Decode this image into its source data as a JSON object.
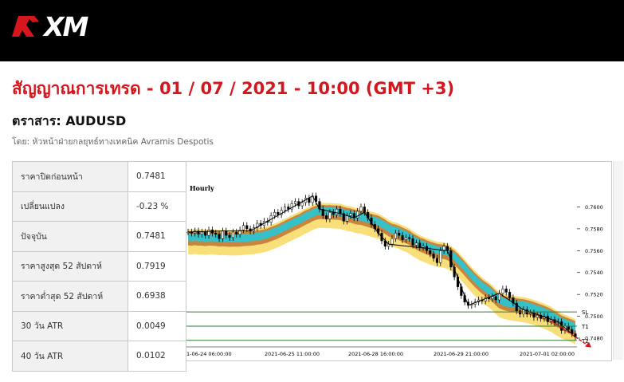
{
  "brand": {
    "name": "XM",
    "accent": "#d5161d"
  },
  "page": {
    "title": "สัญญาณการเทรด - 01 / 07 / 2021 - 10:00 (GMT +3)",
    "instrument": "ตราสาร: AUDUSD",
    "author": "โดย: หัวหน้าฝ่ายกลยุทธ์ทางเทคนิค Avramis Despotis"
  },
  "stats": [
    {
      "label": "ราคาปิดก่อนหน้า",
      "value": "0.7481"
    },
    {
      "label": "เปลี่ยนแปลง",
      "value": "-0.23 %"
    },
    {
      "label": "ปัจจุบัน",
      "value": "0.7481"
    },
    {
      "label": "ราคาสูงสุด 52 สัปดาห์",
      "value": "0.7919"
    },
    {
      "label": "ราคาต่ำสุด 52 สัปดาห์",
      "value": "0.6938"
    },
    {
      "label": "30 วัน ATR",
      "value": "0.0049"
    },
    {
      "label": "40 วัน ATR",
      "value": "0.0102"
    }
  ],
  "chart_data": {
    "type": "line",
    "timeframe_label": "Hourly",
    "x_tick_labels": [
      "1-06-24 06:00:00",
      "2021-06-25 11:00:00",
      "2021-06-28 16:00:00",
      "2021-06-29 21:00:00",
      "2021-07-01 02:00:00"
    ],
    "y_tick_labels": [
      "0.7600",
      "0.7580",
      "0.7560",
      "0.7540",
      "0.7520",
      "0.7500",
      "0.7480"
    ],
    "ylim": [
      0.7472,
      0.7612
    ],
    "level_labels": {
      "sl": "SL",
      "t1": "T1",
      "t2": "T2"
    },
    "levels": {
      "sl": 0.7504,
      "t1": 0.7491,
      "t2": 0.7478
    },
    "close_series": [
      0.7577,
      0.7576,
      0.7578,
      0.7575,
      0.7577,
      0.7574,
      0.7579,
      0.7576,
      0.7575,
      0.7571,
      0.7578,
      0.7574,
      0.7572,
      0.7577,
      0.7575,
      0.7579,
      0.7583,
      0.758,
      0.7578,
      0.7581,
      0.7585,
      0.7583,
      0.7587,
      0.7586,
      0.7592,
      0.7595,
      0.7593,
      0.7597,
      0.76,
      0.7598,
      0.7603,
      0.7605,
      0.7601,
      0.7604,
      0.7608,
      0.7604,
      0.761,
      0.7605,
      0.7598,
      0.7592,
      0.7589,
      0.7595,
      0.7593,
      0.7598,
      0.7594,
      0.7587,
      0.7592,
      0.7594,
      0.759,
      0.7596,
      0.76,
      0.7595,
      0.759,
      0.7584,
      0.758,
      0.7576,
      0.7569,
      0.7564,
      0.7566,
      0.7571,
      0.7576,
      0.7574,
      0.757,
      0.7572,
      0.7571,
      0.7565,
      0.7567,
      0.7563,
      0.7564,
      0.756,
      0.7557,
      0.7553,
      0.7549,
      0.756,
      0.7564,
      0.756,
      0.7545,
      0.7536,
      0.7527,
      0.7519,
      0.7513,
      0.751,
      0.7511,
      0.7513,
      0.7515,
      0.7514,
      0.7517,
      0.7516,
      0.7518,
      0.7515,
      0.7521,
      0.7525,
      0.7522,
      0.7517,
      0.7512,
      0.7505,
      0.7502,
      0.7506,
      0.7502,
      0.7503,
      0.7499,
      0.7501,
      0.7498,
      0.75,
      0.7495,
      0.7497,
      0.7494,
      0.7495,
      0.7487,
      0.7491,
      0.7488,
      0.7484,
      0.7481
    ],
    "bands": {
      "outer_color": "#f9df7a",
      "middle_color": "#c9853d",
      "inner_color": "#36c1c9"
    }
  }
}
